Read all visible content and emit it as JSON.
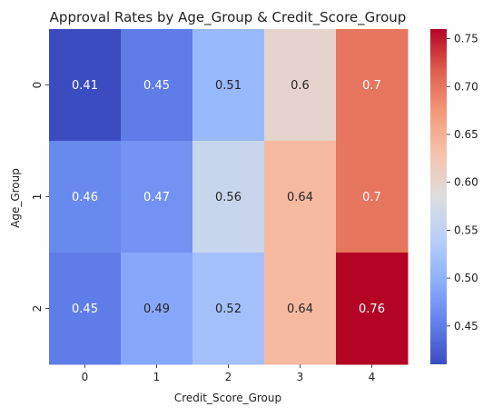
{
  "chart_data": {
    "type": "heatmap",
    "title": "Approval Rates by Age_Group & Credit_Score_Group",
    "xlabel": "Credit_Score_Group",
    "ylabel": "Age_Group",
    "x_categories": [
      "0",
      "1",
      "2",
      "3",
      "4"
    ],
    "y_categories": [
      "0",
      "1",
      "2"
    ],
    "values": [
      [
        0.41,
        0.45,
        0.51,
        0.6,
        0.7
      ],
      [
        0.46,
        0.47,
        0.56,
        0.64,
        0.7
      ],
      [
        0.45,
        0.49,
        0.52,
        0.64,
        0.76
      ]
    ],
    "colormap": "coolwarm",
    "vmin": 0.41,
    "vmax": 0.76,
    "colorbar": {
      "ticks": [
        0.45,
        0.5,
        0.55,
        0.6,
        0.65,
        0.7,
        0.75
      ],
      "tick_labels": [
        "0.45",
        "0.50",
        "0.55",
        "0.60",
        "0.65",
        "0.70",
        "0.75"
      ]
    }
  }
}
